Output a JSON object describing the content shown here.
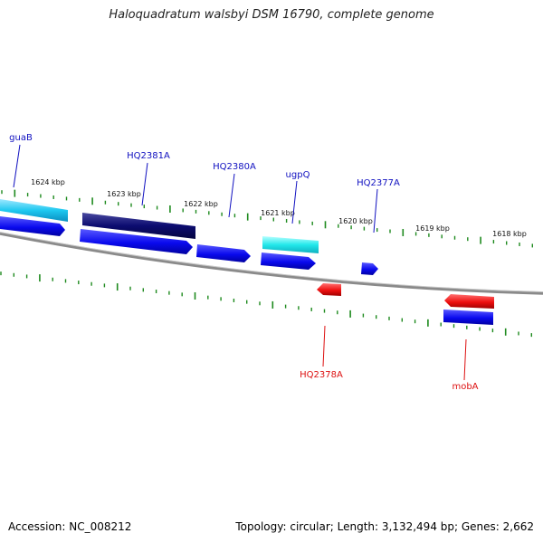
{
  "title": "Haloquadratum walsbyi DSM 16790, complete genome",
  "footer": {
    "accession": "Accession: NC_008212",
    "summary": "Topology: circular; Length: 3,132,494 bp; Genes: 2,662"
  },
  "colors": {
    "backbone": "#8a8a8a",
    "tick": "#1e8a1e",
    "forward_gene": "#0a0aee",
    "forward_label": "#1010c0",
    "reverse_gene": "#ee1010",
    "reverse_label": "#dd1111",
    "cds_light": "#1ec8f0",
    "cds_dark": "#0c0c70",
    "cds_cyan": "#22e8ea"
  },
  "scale_ticks": [
    {
      "label": "1624 kbp"
    },
    {
      "label": "1623 kbp"
    },
    {
      "label": "1622 kbp"
    },
    {
      "label": "1621 kbp"
    },
    {
      "label": "1620 kbp"
    },
    {
      "label": "1619 kbp"
    },
    {
      "label": "1618 kbp"
    }
  ],
  "forward_labels": [
    {
      "name": "guaB"
    },
    {
      "name": "HQ2381A"
    },
    {
      "name": "HQ2380A"
    },
    {
      "name": "ugpQ"
    },
    {
      "name": "HQ2377A"
    }
  ],
  "reverse_labels": [
    {
      "name": "HQ2378A"
    },
    {
      "name": "mobA"
    }
  ]
}
